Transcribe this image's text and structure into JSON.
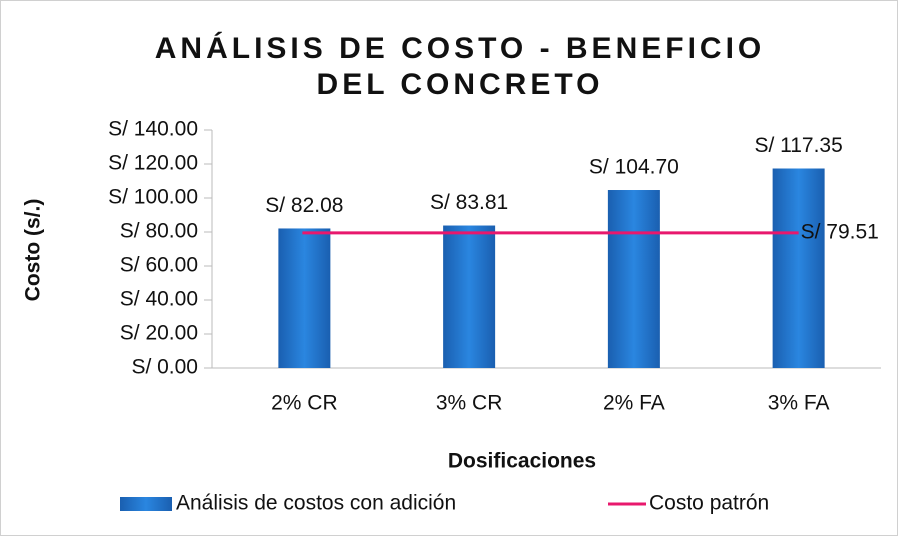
{
  "chart_data": {
    "type": "bar",
    "title": [
      "ANÁLISIS DE COSTO - BENEFICIO",
      "DEL CONCRETO"
    ],
    "y_label": "Costo (s/.)",
    "x_label": "Dosificaciones",
    "categories": [
      "2% CR",
      "3% CR",
      "2% FA",
      "3% FA"
    ],
    "series": [
      {
        "name": "Análisis de costos con adición",
        "type": "bar",
        "color": "#1f74d0",
        "values": [
          82.08,
          83.81,
          104.7,
          117.35
        ],
        "value_labels": [
          "S/ 82.08",
          "S/ 83.81",
          "S/ 104.70",
          "S/ 117.35"
        ]
      },
      {
        "name": "Costo patrón",
        "type": "line",
        "color": "#e8186d",
        "values": [
          79.51,
          79.51,
          79.51,
          79.51
        ],
        "value_labels": [
          null,
          null,
          null,
          "S/ 79.51"
        ]
      }
    ],
    "ylim": [
      0,
      140
    ],
    "yticks": [
      {
        "value": 0,
        "label": "S/ 0.00"
      },
      {
        "value": 20,
        "label": "S/ 20.00"
      },
      {
        "value": 40,
        "label": "S/ 40.00"
      },
      {
        "value": 60,
        "label": "S/ 60.00"
      },
      {
        "value": 80,
        "label": "S/ 80.00"
      },
      {
        "value": 100,
        "label": "S/ 100.00"
      },
      {
        "value": 120,
        "label": "S/ 120.00"
      },
      {
        "value": 140,
        "label": "S/ 140.00"
      }
    ],
    "legend": "bottom"
  }
}
